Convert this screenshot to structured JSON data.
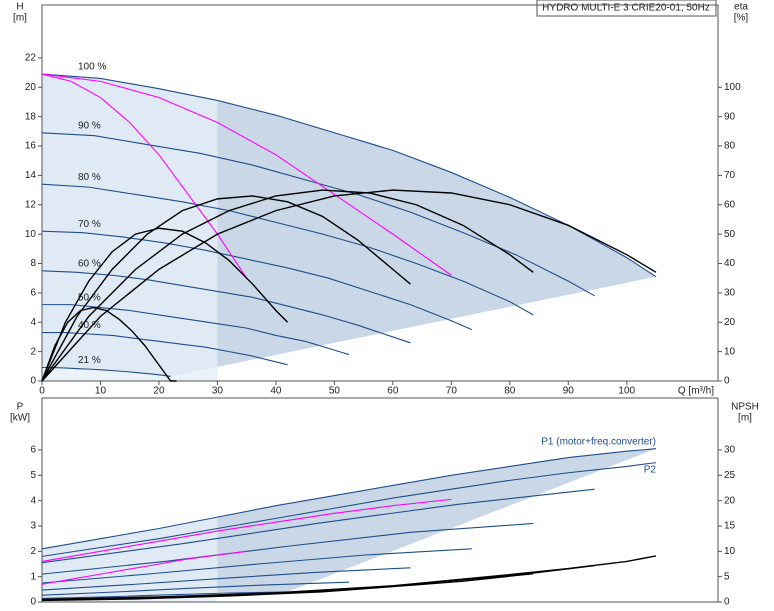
{
  "chart_data": [
    {
      "type": "line",
      "title": "HYDRO MULTI-E 3 CRIE20-01, 50Hz",
      "xlabel": "Q [m³/h]",
      "ylabel": "H",
      "yunit": "[m]",
      "y2label": "eta",
      "y2unit": "[%]",
      "xlim": [
        0,
        115.6
      ],
      "xticks": [
        0,
        10,
        20,
        30,
        40,
        50,
        60,
        70,
        80,
        90,
        100
      ],
      "ylim": [
        0,
        25.6
      ],
      "yticks": [
        0,
        2,
        4,
        6,
        8,
        10,
        12,
        14,
        16,
        18,
        20,
        22
      ],
      "y2lim": [
        0,
        128
      ],
      "y2ticks": [
        0,
        10,
        20,
        30,
        40,
        50,
        60,
        70,
        80,
        90,
        100
      ],
      "grid": false,
      "series": [
        {
          "name": "100 %",
          "color": "#1f4e8c",
          "x": [
            0,
            10,
            20,
            30,
            40,
            50,
            60,
            70,
            80,
            90,
            100,
            105
          ],
          "values": [
            20.9,
            20.6,
            19.9,
            19.1,
            18.1,
            16.9,
            15.7,
            14.2,
            12.5,
            10.6,
            8.4,
            7.1
          ]
        },
        {
          "name": "90 %",
          "color": "#1f4e8c",
          "x": [
            0,
            9,
            18,
            27,
            36,
            45,
            54,
            63,
            72,
            81,
            90,
            94.5
          ],
          "values": [
            16.9,
            16.7,
            16.1,
            15.5,
            14.7,
            13.7,
            12.7,
            11.5,
            10.1,
            8.6,
            6.8,
            5.8
          ]
        },
        {
          "name": "80 %",
          "color": "#1f4e8c",
          "x": [
            0,
            8,
            16,
            24,
            32,
            40,
            48,
            56,
            64,
            72,
            80,
            84
          ],
          "values": [
            13.4,
            13.2,
            12.7,
            12.2,
            11.6,
            10.8,
            10.0,
            9.1,
            8.0,
            6.8,
            5.4,
            4.5
          ]
        },
        {
          "name": "70 %",
          "color": "#1f4e8c",
          "x": [
            0,
            7,
            14,
            21,
            28,
            35,
            42,
            49,
            56,
            63,
            70,
            73.5
          ],
          "values": [
            10.2,
            10.1,
            9.8,
            9.4,
            8.9,
            8.3,
            7.7,
            7.0,
            6.1,
            5.2,
            4.1,
            3.5
          ]
        },
        {
          "name": "60 %",
          "color": "#1f4e8c",
          "x": [
            0,
            6,
            12,
            18,
            24,
            30,
            36,
            42,
            48,
            54,
            60,
            63
          ],
          "values": [
            7.5,
            7.4,
            7.2,
            6.9,
            6.5,
            6.1,
            5.7,
            5.1,
            4.5,
            3.8,
            3.0,
            2.6
          ]
        },
        {
          "name": "50 %",
          "color": "#1f4e8c",
          "x": [
            0,
            5,
            10,
            15,
            20,
            25,
            30,
            35,
            40,
            45,
            50,
            52.5
          ],
          "values": [
            5.2,
            5.2,
            5.0,
            4.8,
            4.5,
            4.2,
            3.9,
            3.6,
            3.1,
            2.7,
            2.1,
            1.8
          ]
        },
        {
          "name": "40 %",
          "color": "#1f4e8c",
          "x": [
            0,
            4,
            8,
            12,
            16,
            20,
            24,
            28,
            32,
            36,
            40,
            42
          ],
          "values": [
            3.3,
            3.3,
            3.2,
            3.1,
            2.9,
            2.7,
            2.5,
            2.3,
            2.0,
            1.7,
            1.3,
            1.1
          ]
        },
        {
          "name": "21 %",
          "color": "#1f4e8c",
          "x": [
            0,
            2.1,
            4.2,
            6.3,
            8.4,
            10.5,
            12.6,
            14.7,
            16.8,
            18.9,
            21,
            22
          ],
          "values": [
            0.92,
            0.91,
            0.88,
            0.84,
            0.8,
            0.75,
            0.69,
            0.63,
            0.55,
            0.47,
            0.37,
            0.31
          ]
        },
        {
          "color": "#ff00ff",
          "x": [
            0,
            10,
            20,
            30,
            40,
            50,
            60,
            70
          ],
          "values": [
            20.9,
            20.4,
            19.3,
            17.6,
            15.4,
            12.7,
            10.0,
            7.2
          ]
        },
        {
          "color": "#ff00ff",
          "x": [
            0,
            5,
            10,
            15,
            20,
            25,
            30,
            35
          ],
          "values": [
            20.9,
            20.4,
            19.3,
            17.6,
            15.4,
            12.7,
            10.0,
            7.0
          ]
        },
        {
          "color": "#000000",
          "axis": "y2",
          "x": [
            0,
            10,
            20,
            30,
            40,
            50,
            60,
            70,
            80,
            90,
            100,
            105
          ],
          "values": [
            0,
            22,
            38,
            50,
            58,
            63,
            65,
            64,
            60,
            53,
            43,
            37
          ]
        },
        {
          "color": "#000000",
          "axis": "y2",
          "x": [
            0,
            8,
            16,
            24,
            32,
            40,
            48,
            56,
            64,
            72,
            80,
            84
          ],
          "values": [
            0,
            22,
            38,
            50,
            58,
            63,
            65,
            64,
            60,
            53,
            43,
            37
          ]
        },
        {
          "color": "#000000",
          "axis": "y2",
          "x": [
            0,
            6,
            12,
            18,
            24,
            30,
            36,
            42,
            48,
            54,
            60,
            63
          ],
          "values": [
            0,
            22,
            38,
            50,
            58,
            62,
            63,
            61,
            56,
            48,
            38,
            33
          ]
        },
        {
          "color": "#000000",
          "axis": "y2",
          "x": [
            0,
            4,
            8,
            12,
            16,
            20,
            24,
            28,
            32,
            36,
            40,
            42
          ],
          "values": [
            0,
            20,
            34,
            44,
            50,
            52,
            51,
            47,
            41,
            33,
            24,
            20
          ]
        },
        {
          "color": "#000000",
          "axis": "y2",
          "x": [
            0,
            2.2,
            4.4,
            6.6,
            8.8,
            11,
            13.2,
            15.4,
            17.6,
            19.8,
            22,
            23
          ],
          "values": [
            0,
            12,
            20,
            24,
            25,
            24,
            21,
            17,
            12,
            6,
            0,
            0
          ]
        }
      ]
    },
    {
      "type": "line",
      "ylabel": "P",
      "yunit": "[kW]",
      "y2label": "NPSH",
      "y2unit": "[m]",
      "xlim": [
        0,
        115.6
      ],
      "ylim": [
        0,
        8.05
      ],
      "yticks": [
        0,
        1,
        2,
        3,
        4,
        5,
        6
      ],
      "y2lim": [
        0,
        40.25
      ],
      "y2ticks": [
        0,
        5,
        10,
        15,
        20,
        25,
        30
      ],
      "grid": false,
      "series": [
        {
          "name": "P1 (motor+freq.converter)",
          "color": "#1f4e8c",
          "x": [
            0,
            10,
            20,
            30,
            40,
            50,
            60,
            70,
            80,
            90,
            100,
            105
          ],
          "values": [
            2.1,
            2.5,
            2.9,
            3.35,
            3.8,
            4.2,
            4.6,
            5.0,
            5.35,
            5.7,
            5.95,
            6.05
          ]
        },
        {
          "name": "P2",
          "color": "#1f4e8c",
          "x": [
            0,
            10,
            20,
            30,
            40,
            50,
            60,
            70,
            80,
            90,
            100,
            105
          ],
          "values": [
            1.8,
            2.15,
            2.5,
            2.9,
            3.3,
            3.7,
            4.1,
            4.45,
            4.8,
            5.1,
            5.35,
            5.5
          ]
        },
        {
          "color": "#1f4e8c",
          "x": [
            0,
            24,
            47,
            71,
            94.5
          ],
          "values": [
            1.55,
            2.3,
            3.1,
            3.85,
            4.45
          ]
        },
        {
          "color": "#1f4e8c",
          "x": [
            0,
            21,
            42,
            63,
            84
          ],
          "values": [
            1.1,
            1.6,
            2.2,
            2.75,
            3.1
          ]
        },
        {
          "color": "#1f4e8c",
          "x": [
            0,
            18,
            37,
            55,
            73.5
          ],
          "values": [
            0.75,
            1.1,
            1.5,
            1.85,
            2.1
          ]
        },
        {
          "color": "#1f4e8c",
          "x": [
            0,
            16,
            32,
            47,
            63
          ],
          "values": [
            0.47,
            0.7,
            0.95,
            1.17,
            1.35
          ]
        },
        {
          "color": "#1f4e8c",
          "x": [
            0,
            13,
            26,
            39,
            52.5
          ],
          "values": [
            0.27,
            0.4,
            0.55,
            0.68,
            0.78
          ]
        },
        {
          "color": "#1f4e8c",
          "x": [
            0,
            10.5,
            21,
            31.5,
            42
          ],
          "values": [
            0.14,
            0.2,
            0.28,
            0.35,
            0.4
          ]
        },
        {
          "color": "#ff00ff",
          "x": [
            0,
            10,
            20,
            30,
            40,
            50,
            60,
            70
          ],
          "values": [
            1.6,
            2.0,
            2.4,
            2.8,
            3.15,
            3.5,
            3.8,
            4.05
          ]
        },
        {
          "color": "#ff00ff",
          "x": [
            0,
            5,
            10,
            15,
            20,
            25,
            30,
            35
          ],
          "values": [
            0.7,
            0.9,
            1.1,
            1.3,
            1.5,
            1.7,
            1.85,
            2.0
          ]
        },
        {
          "color": "#000000",
          "axis": "y2",
          "x": [
            0,
            20,
            40,
            60,
            70,
            80,
            90,
            100,
            105
          ],
          "values": [
            0.5,
            1,
            1.8,
            3.2,
            4.3,
            5.4,
            6.6,
            8,
            9.1
          ]
        },
        {
          "color": "#000000",
          "axis": "y2",
          "x": [
            0,
            18,
            36,
            54,
            63,
            72,
            81,
            94.5
          ],
          "values": [
            0.4,
            0.8,
            1.5,
            2.6,
            3.5,
            4.4,
            5.3,
            7.2
          ]
        },
        {
          "color": "#000000",
          "axis": "y2",
          "x": [
            0,
            16,
            32,
            48,
            56,
            64,
            72,
            84
          ],
          "values": [
            0.3,
            0.6,
            1.2,
            2.0,
            2.7,
            3.4,
            4.1,
            5.6
          ]
        }
      ]
    }
  ]
}
